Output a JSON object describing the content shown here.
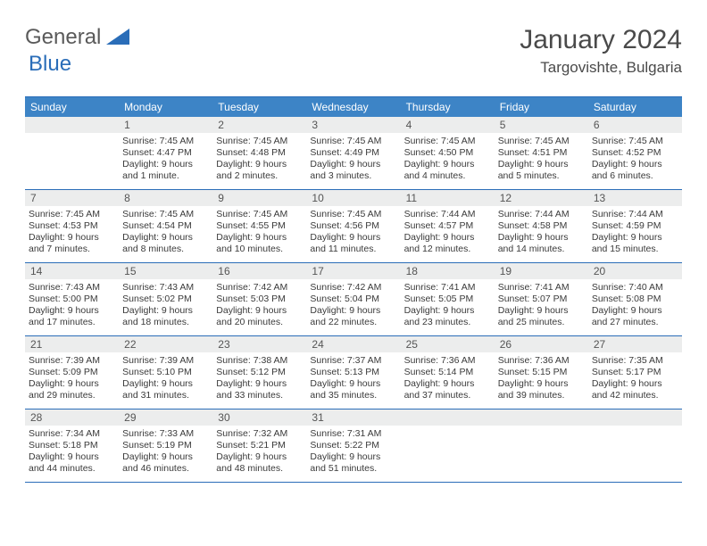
{
  "logo": {
    "text_gray": "General",
    "text_blue": "Blue"
  },
  "title": "January 2024",
  "location": "Targovishte, Bulgaria",
  "colors": {
    "header_bg": "#3d84c6",
    "header_text": "#ffffff",
    "rule": "#2a6db8",
    "daynum_bg": "#eceded",
    "body_text": "#3a3a3a",
    "logo_gray": "#5a5a5a",
    "logo_blue": "#2a6db8"
  },
  "day_headers": [
    "Sunday",
    "Monday",
    "Tuesday",
    "Wednesday",
    "Thursday",
    "Friday",
    "Saturday"
  ],
  "weeks": [
    [
      {
        "blank": true
      },
      {
        "n": "1",
        "sr": "7:45 AM",
        "ss": "4:47 PM",
        "dl": "9 hours and 1 minute."
      },
      {
        "n": "2",
        "sr": "7:45 AM",
        "ss": "4:48 PM",
        "dl": "9 hours and 2 minutes."
      },
      {
        "n": "3",
        "sr": "7:45 AM",
        "ss": "4:49 PM",
        "dl": "9 hours and 3 minutes."
      },
      {
        "n": "4",
        "sr": "7:45 AM",
        "ss": "4:50 PM",
        "dl": "9 hours and 4 minutes."
      },
      {
        "n": "5",
        "sr": "7:45 AM",
        "ss": "4:51 PM",
        "dl": "9 hours and 5 minutes."
      },
      {
        "n": "6",
        "sr": "7:45 AM",
        "ss": "4:52 PM",
        "dl": "9 hours and 6 minutes."
      }
    ],
    [
      {
        "n": "7",
        "sr": "7:45 AM",
        "ss": "4:53 PM",
        "dl": "9 hours and 7 minutes."
      },
      {
        "n": "8",
        "sr": "7:45 AM",
        "ss": "4:54 PM",
        "dl": "9 hours and 8 minutes."
      },
      {
        "n": "9",
        "sr": "7:45 AM",
        "ss": "4:55 PM",
        "dl": "9 hours and 10 minutes."
      },
      {
        "n": "10",
        "sr": "7:45 AM",
        "ss": "4:56 PM",
        "dl": "9 hours and 11 minutes."
      },
      {
        "n": "11",
        "sr": "7:44 AM",
        "ss": "4:57 PM",
        "dl": "9 hours and 12 minutes."
      },
      {
        "n": "12",
        "sr": "7:44 AM",
        "ss": "4:58 PM",
        "dl": "9 hours and 14 minutes."
      },
      {
        "n": "13",
        "sr": "7:44 AM",
        "ss": "4:59 PM",
        "dl": "9 hours and 15 minutes."
      }
    ],
    [
      {
        "n": "14",
        "sr": "7:43 AM",
        "ss": "5:00 PM",
        "dl": "9 hours and 17 minutes."
      },
      {
        "n": "15",
        "sr": "7:43 AM",
        "ss": "5:02 PM",
        "dl": "9 hours and 18 minutes."
      },
      {
        "n": "16",
        "sr": "7:42 AM",
        "ss": "5:03 PM",
        "dl": "9 hours and 20 minutes."
      },
      {
        "n": "17",
        "sr": "7:42 AM",
        "ss": "5:04 PM",
        "dl": "9 hours and 22 minutes."
      },
      {
        "n": "18",
        "sr": "7:41 AM",
        "ss": "5:05 PM",
        "dl": "9 hours and 23 minutes."
      },
      {
        "n": "19",
        "sr": "7:41 AM",
        "ss": "5:07 PM",
        "dl": "9 hours and 25 minutes."
      },
      {
        "n": "20",
        "sr": "7:40 AM",
        "ss": "5:08 PM",
        "dl": "9 hours and 27 minutes."
      }
    ],
    [
      {
        "n": "21",
        "sr": "7:39 AM",
        "ss": "5:09 PM",
        "dl": "9 hours and 29 minutes."
      },
      {
        "n": "22",
        "sr": "7:39 AM",
        "ss": "5:10 PM",
        "dl": "9 hours and 31 minutes."
      },
      {
        "n": "23",
        "sr": "7:38 AM",
        "ss": "5:12 PM",
        "dl": "9 hours and 33 minutes."
      },
      {
        "n": "24",
        "sr": "7:37 AM",
        "ss": "5:13 PM",
        "dl": "9 hours and 35 minutes."
      },
      {
        "n": "25",
        "sr": "7:36 AM",
        "ss": "5:14 PM",
        "dl": "9 hours and 37 minutes."
      },
      {
        "n": "26",
        "sr": "7:36 AM",
        "ss": "5:15 PM",
        "dl": "9 hours and 39 minutes."
      },
      {
        "n": "27",
        "sr": "7:35 AM",
        "ss": "5:17 PM",
        "dl": "9 hours and 42 minutes."
      }
    ],
    [
      {
        "n": "28",
        "sr": "7:34 AM",
        "ss": "5:18 PM",
        "dl": "9 hours and 44 minutes."
      },
      {
        "n": "29",
        "sr": "7:33 AM",
        "ss": "5:19 PM",
        "dl": "9 hours and 46 minutes."
      },
      {
        "n": "30",
        "sr": "7:32 AM",
        "ss": "5:21 PM",
        "dl": "9 hours and 48 minutes."
      },
      {
        "n": "31",
        "sr": "7:31 AM",
        "ss": "5:22 PM",
        "dl": "9 hours and 51 minutes."
      },
      {
        "blank": true
      },
      {
        "blank": true
      },
      {
        "blank": true
      }
    ]
  ],
  "labels": {
    "sunrise": "Sunrise:",
    "sunset": "Sunset:",
    "daylight": "Daylight:"
  }
}
